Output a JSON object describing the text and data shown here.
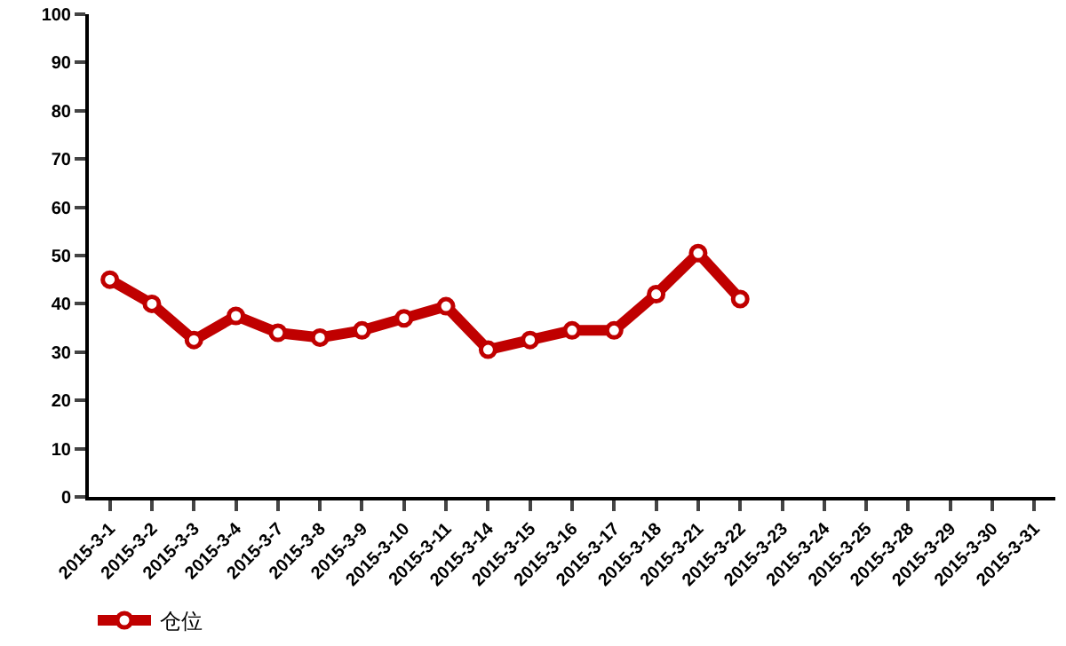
{
  "chart_data": {
    "type": "line",
    "categories": [
      "2015-3-1",
      "2015-3-2",
      "2015-3-3",
      "2015-3-4",
      "2015-3-7",
      "2015-3-8",
      "2015-3-9",
      "2015-3-10",
      "2015-3-11",
      "2015-3-14",
      "2015-3-15",
      "2015-3-16",
      "2015-3-17",
      "2015-3-18",
      "2015-3-21",
      "2015-3-22",
      "2015-3-23",
      "2015-3-24",
      "2015-3-25",
      "2015-3-28",
      "2015-3-29",
      "2015-3-30",
      "2015-3-31"
    ],
    "series": [
      {
        "name": "仓位",
        "color": "#c00000",
        "values": [
          45,
          40,
          32.5,
          37.5,
          34,
          33,
          34.5,
          37,
          39.5,
          30.5,
          32.5,
          34.5,
          34.5,
          42,
          50.5,
          41,
          null,
          null,
          null,
          null,
          null,
          null,
          null
        ]
      }
    ],
    "ylim": [
      0,
      100
    ],
    "yticks": [
      0,
      10,
      20,
      30,
      40,
      50,
      60,
      70,
      80,
      90,
      100
    ],
    "grid": false,
    "legend": "bottom left",
    "marker": "circle",
    "line_style": "solid"
  }
}
